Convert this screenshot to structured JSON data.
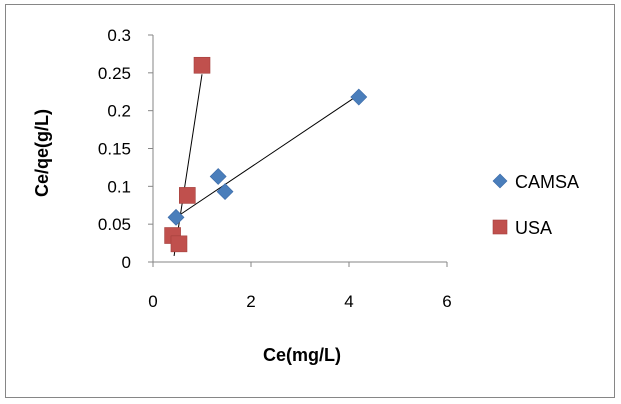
{
  "chart_data": {
    "type": "scatter",
    "xlabel": "Ce(mg/L)",
    "ylabel": "Ce/qe(g/L)",
    "xlim": [
      0,
      6
    ],
    "ylim": [
      0,
      0.3
    ],
    "x_ticks": [
      0,
      2,
      4,
      6
    ],
    "y_ticks": [
      0,
      0.05,
      0.1,
      0.15,
      0.2,
      0.25,
      0.3
    ],
    "y_tick_labels": [
      "0",
      "0.05",
      "0.1",
      "0.15",
      "0.2",
      "0.25",
      "0.3"
    ],
    "x_tick_labels": [
      "0",
      "2",
      "4",
      "6"
    ],
    "grid": false,
    "legend_position": "right",
    "series": [
      {
        "name": "CAMSA",
        "marker": "diamond",
        "color": "#4a7ebb",
        "points": [
          {
            "x": 0.47,
            "y": 0.059
          },
          {
            "x": 1.33,
            "y": 0.113
          },
          {
            "x": 1.47,
            "y": 0.093
          },
          {
            "x": 4.2,
            "y": 0.218
          }
        ],
        "trendline": {
          "x0": 0.47,
          "y0": 0.059,
          "x1": 4.13,
          "y1": 0.218
        }
      },
      {
        "name": "USA",
        "marker": "square",
        "color": "#c0504d",
        "points": [
          {
            "x": 0.4,
            "y": 0.035
          },
          {
            "x": 0.53,
            "y": 0.024
          },
          {
            "x": 0.7,
            "y": 0.088
          },
          {
            "x": 1.0,
            "y": 0.26
          }
        ],
        "trendline": {
          "x0": 0.43,
          "y0": 0.008,
          "x1": 1.0,
          "y1": 0.248
        }
      }
    ]
  }
}
